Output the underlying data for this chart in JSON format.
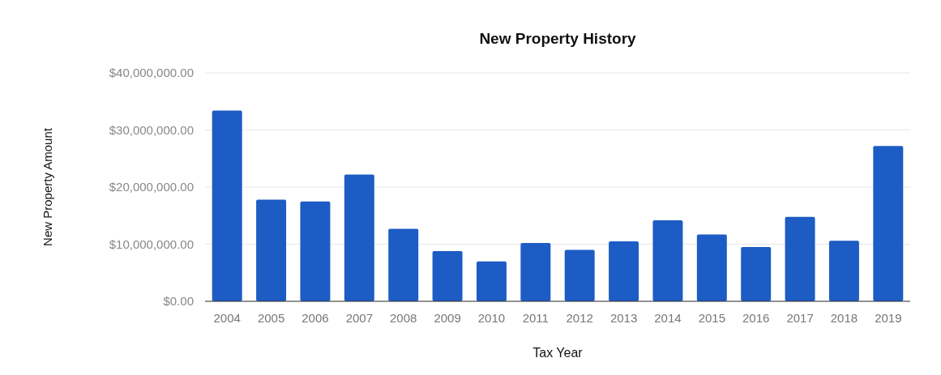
{
  "chart_data": {
    "type": "bar",
    "title": "New Property History",
    "xlabel": "Tax Year",
    "ylabel": "New Property Amount",
    "categories": [
      "2004",
      "2005",
      "2006",
      "2007",
      "2008",
      "2009",
      "2010",
      "2011",
      "2012",
      "2013",
      "2014",
      "2015",
      "2016",
      "2017",
      "2018",
      "2019"
    ],
    "values": [
      33400000,
      17800000,
      17500000,
      22200000,
      12700000,
      8800000,
      7000000,
      10200000,
      9000000,
      10500000,
      14200000,
      11700000,
      9500000,
      14800000,
      10600000,
      27200000
    ],
    "color": "#1d5cc4",
    "ylim": [
      0,
      40000000
    ],
    "yticks": [
      {
        "value": 0,
        "label": "$0.00"
      },
      {
        "value": 10000000,
        "label": "$10,000,000.00"
      },
      {
        "value": 20000000,
        "label": "$20,000,000.00"
      },
      {
        "value": 30000000,
        "label": "$30,000,000.00"
      },
      {
        "value": 40000000,
        "label": "$40,000,000.00"
      }
    ],
    "grid": "y"
  }
}
